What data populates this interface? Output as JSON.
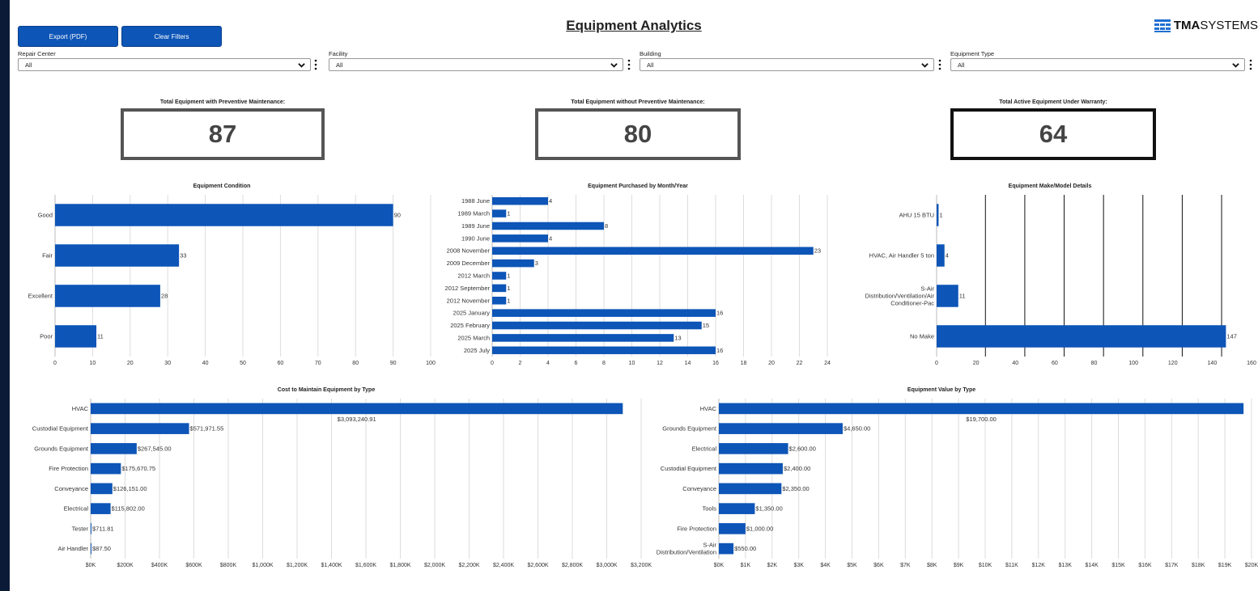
{
  "toolbar": {
    "export_label": "Export (PDF)",
    "clear_label": "Clear Filters"
  },
  "page": {
    "title": "Equipment Analytics"
  },
  "logo": {
    "bold": "TMA",
    "regular": "SYSTEMS"
  },
  "filters": [
    {
      "label": "Repair Center",
      "value": "All"
    },
    {
      "label": "Facility",
      "value": "All"
    },
    {
      "label": "Building",
      "value": "All"
    },
    {
      "label": "Equipment Type",
      "value": "All"
    }
  ],
  "kpis": [
    {
      "title": "Total Equipment with Preventive Maintenance:",
      "value": "87"
    },
    {
      "title": "Total Equipment without Preventive Maintenance:",
      "value": "80"
    },
    {
      "title": "Total Active Equipment Under Warranty:",
      "value": "64"
    }
  ],
  "colors": {
    "bar": "#0d55b7",
    "grid": "#dddddd",
    "frame": "#0b1a36"
  },
  "icons": {
    "dropdown": "chevron-down-icon",
    "menu": "kebab-menu-icon",
    "logo": "tma-logo-icon"
  },
  "chart_data": [
    {
      "id": "condition",
      "type": "bar",
      "orientation": "horizontal",
      "title": "Equipment Condition",
      "categories": [
        "Good",
        "Fair",
        "Excellent",
        "Poor"
      ],
      "values": [
        90,
        33,
        28,
        11
      ],
      "labels": [
        "90",
        "33",
        "28",
        "11"
      ],
      "xlim": [
        0,
        100
      ],
      "ticks": [
        0,
        10,
        20,
        30,
        40,
        50,
        60,
        70,
        80,
        90,
        100
      ],
      "tick_labels": [
        "0",
        "10",
        "20",
        "30",
        "40",
        "50",
        "60",
        "70",
        "80",
        "90",
        "100"
      ],
      "grid": "vertical-light"
    },
    {
      "id": "purchased",
      "type": "bar",
      "orientation": "horizontal",
      "title": "Equipment Purchased by Month/Year",
      "categories": [
        "1988 June",
        "1989 March",
        "1989 June",
        "1990 June",
        "2008 November",
        "2009 December",
        "2012 March",
        "2012 September",
        "2012 November",
        "2025 January",
        "2025 February",
        "2025 March",
        "2025 July"
      ],
      "values": [
        4,
        1,
        8,
        4,
        23,
        3,
        1,
        1,
        1,
        16,
        15,
        13,
        16
      ],
      "labels": [
        "4",
        "1",
        "8",
        "4",
        "23",
        "3",
        "1",
        "1",
        "1",
        "16",
        "15",
        "13",
        "16"
      ],
      "xlim": [
        0,
        24
      ],
      "ticks": [
        0,
        2,
        4,
        6,
        8,
        10,
        12,
        14,
        16,
        18,
        20,
        22,
        24
      ],
      "tick_labels": [
        "0",
        "2",
        "4",
        "6",
        "8",
        "10",
        "12",
        "14",
        "16",
        "18",
        "20",
        "22",
        "24"
      ],
      "grid": "vertical-light"
    },
    {
      "id": "makemodel",
      "type": "bar",
      "orientation": "horizontal",
      "title": "Equipment Make/Model Details",
      "categories": [
        [
          "AHU 15 BTU"
        ],
        [
          "HVAC, Air Handler 5 ton"
        ],
        [
          "S-Air",
          "Distribution/Ventilation/Air",
          "Conditioner-Pac"
        ],
        [
          "No Make"
        ]
      ],
      "values": [
        1,
        4,
        11,
        147
      ],
      "labels": [
        "1",
        "4",
        "11",
        "147"
      ],
      "xlim": [
        0,
        160
      ],
      "ticks": [
        0,
        20,
        40,
        60,
        80,
        100,
        120,
        140,
        160
      ],
      "tick_labels": [
        "0",
        "20",
        "40",
        "60",
        "80",
        "100",
        "120",
        "140",
        "160"
      ],
      "grid": "vertical-dark-offset"
    },
    {
      "id": "cost",
      "type": "bar",
      "orientation": "horizontal",
      "title": "Cost to Maintain Equipment by Type",
      "categories": [
        "HVAC",
        "Custodial Equipment",
        "Grounds Equipment",
        "Fire Protection",
        "Conveyance",
        "Electrical",
        "Tester",
        "Air Handler"
      ],
      "values": [
        3093240.91,
        571971.55,
        267545.0,
        175670.75,
        126151.0,
        115802.0,
        711.81,
        87.5
      ],
      "labels": [
        "$3,093,240.91",
        "$571,971.55",
        "$267,545.00",
        "$175,670.75",
        "$126,151.00",
        "$115,802.00",
        "$711.81",
        "$87.50"
      ],
      "label_below_first": true,
      "xlim": [
        0,
        3200000
      ],
      "ticks": [
        0,
        200000,
        400000,
        600000,
        800000,
        1000000,
        1200000,
        1400000,
        1600000,
        1800000,
        2000000,
        2200000,
        2400000,
        2600000,
        2800000,
        3000000,
        3200000
      ],
      "tick_labels": [
        "$0K",
        "$200K",
        "$400K",
        "$600K",
        "$800K",
        "$1,000K",
        "$1,200K",
        "$1,400K",
        "$1,600K",
        "$1,800K",
        "$2,000K",
        "$2,200K",
        "$2,400K",
        "$2,600K",
        "$2,800K",
        "$3,000K",
        "$3,200K"
      ],
      "grid": "vertical-light"
    },
    {
      "id": "value",
      "type": "bar",
      "orientation": "horizontal",
      "title": "Equipment Value by Type",
      "categories": [
        [
          "HVAC"
        ],
        [
          "Grounds Equipment"
        ],
        [
          "Electrical"
        ],
        [
          "Custodial Equipment"
        ],
        [
          "Conveyance"
        ],
        [
          "Tools"
        ],
        [
          "Fire Protection"
        ],
        [
          "S-Air",
          "Distribution/Ventilation"
        ]
      ],
      "values": [
        19700,
        4650,
        2600,
        2400,
        2350,
        1350,
        1000,
        550
      ],
      "labels": [
        "$19,700.00",
        "$4,650.00",
        "$2,600.00",
        "$2,400.00",
        "$2,350.00",
        "$1,350.00",
        "$1,000.00",
        "$550.00"
      ],
      "label_below_first": true,
      "xlim": [
        0,
        20000
      ],
      "ticks": [
        0,
        1000,
        2000,
        3000,
        4000,
        5000,
        6000,
        7000,
        8000,
        9000,
        10000,
        11000,
        12000,
        13000,
        14000,
        15000,
        16000,
        17000,
        18000,
        19000,
        20000
      ],
      "tick_labels": [
        "$0K",
        "$1K",
        "$2K",
        "$3K",
        "$4K",
        "$5K",
        "$6K",
        "$7K",
        "$8K",
        "$9K",
        "$10K",
        "$11K",
        "$12K",
        "$13K",
        "$14K",
        "$15K",
        "$16K",
        "$17K",
        "$18K",
        "$19K",
        "$20K"
      ],
      "grid": "vertical-light"
    }
  ]
}
